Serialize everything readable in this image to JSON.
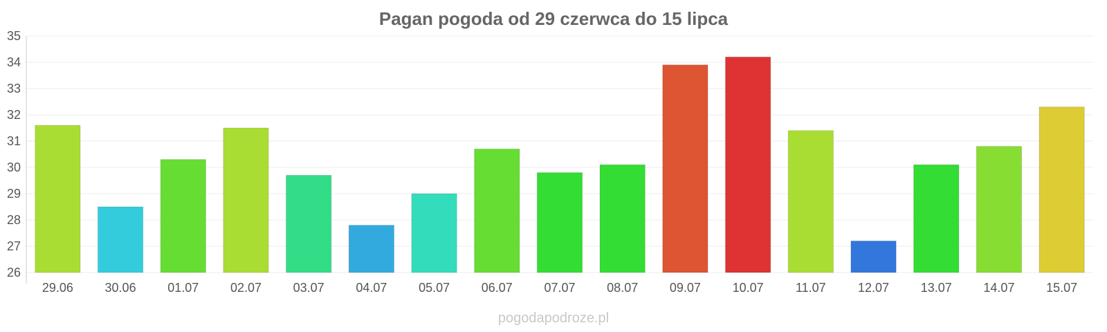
{
  "chart_data": {
    "type": "bar",
    "title": "Pagan pogoda od 29 czerwca do 15 lipca",
    "xlabel": "",
    "ylabel": "",
    "ylim": [
      26,
      35
    ],
    "yticks": [
      26,
      27,
      28,
      29,
      30,
      31,
      32,
      33,
      34,
      35
    ],
    "grid": true,
    "categories": [
      "29.06",
      "30.06",
      "01.07",
      "02.07",
      "03.07",
      "04.07",
      "05.07",
      "06.07",
      "07.07",
      "08.07",
      "09.07",
      "10.07",
      "11.07",
      "12.07",
      "13.07",
      "14.07",
      "15.07"
    ],
    "values": [
      31.6,
      28.5,
      30.3,
      31.5,
      29.7,
      27.8,
      29.0,
      30.7,
      29.8,
      30.1,
      33.9,
      34.2,
      31.4,
      27.2,
      30.1,
      30.8,
      32.3
    ],
    "colors": [
      "#aadd33",
      "#33ccdd",
      "#66dd33",
      "#aadd33",
      "#33dd88",
      "#33aadd",
      "#33ddbb",
      "#66dd33",
      "#33dd33",
      "#33dd33",
      "#dd5533",
      "#dd3333",
      "#aadd33",
      "#3377dd",
      "#33dd33",
      "#88dd33",
      "#ddcc33"
    ]
  },
  "watermark": "pogodapodroze.pl"
}
